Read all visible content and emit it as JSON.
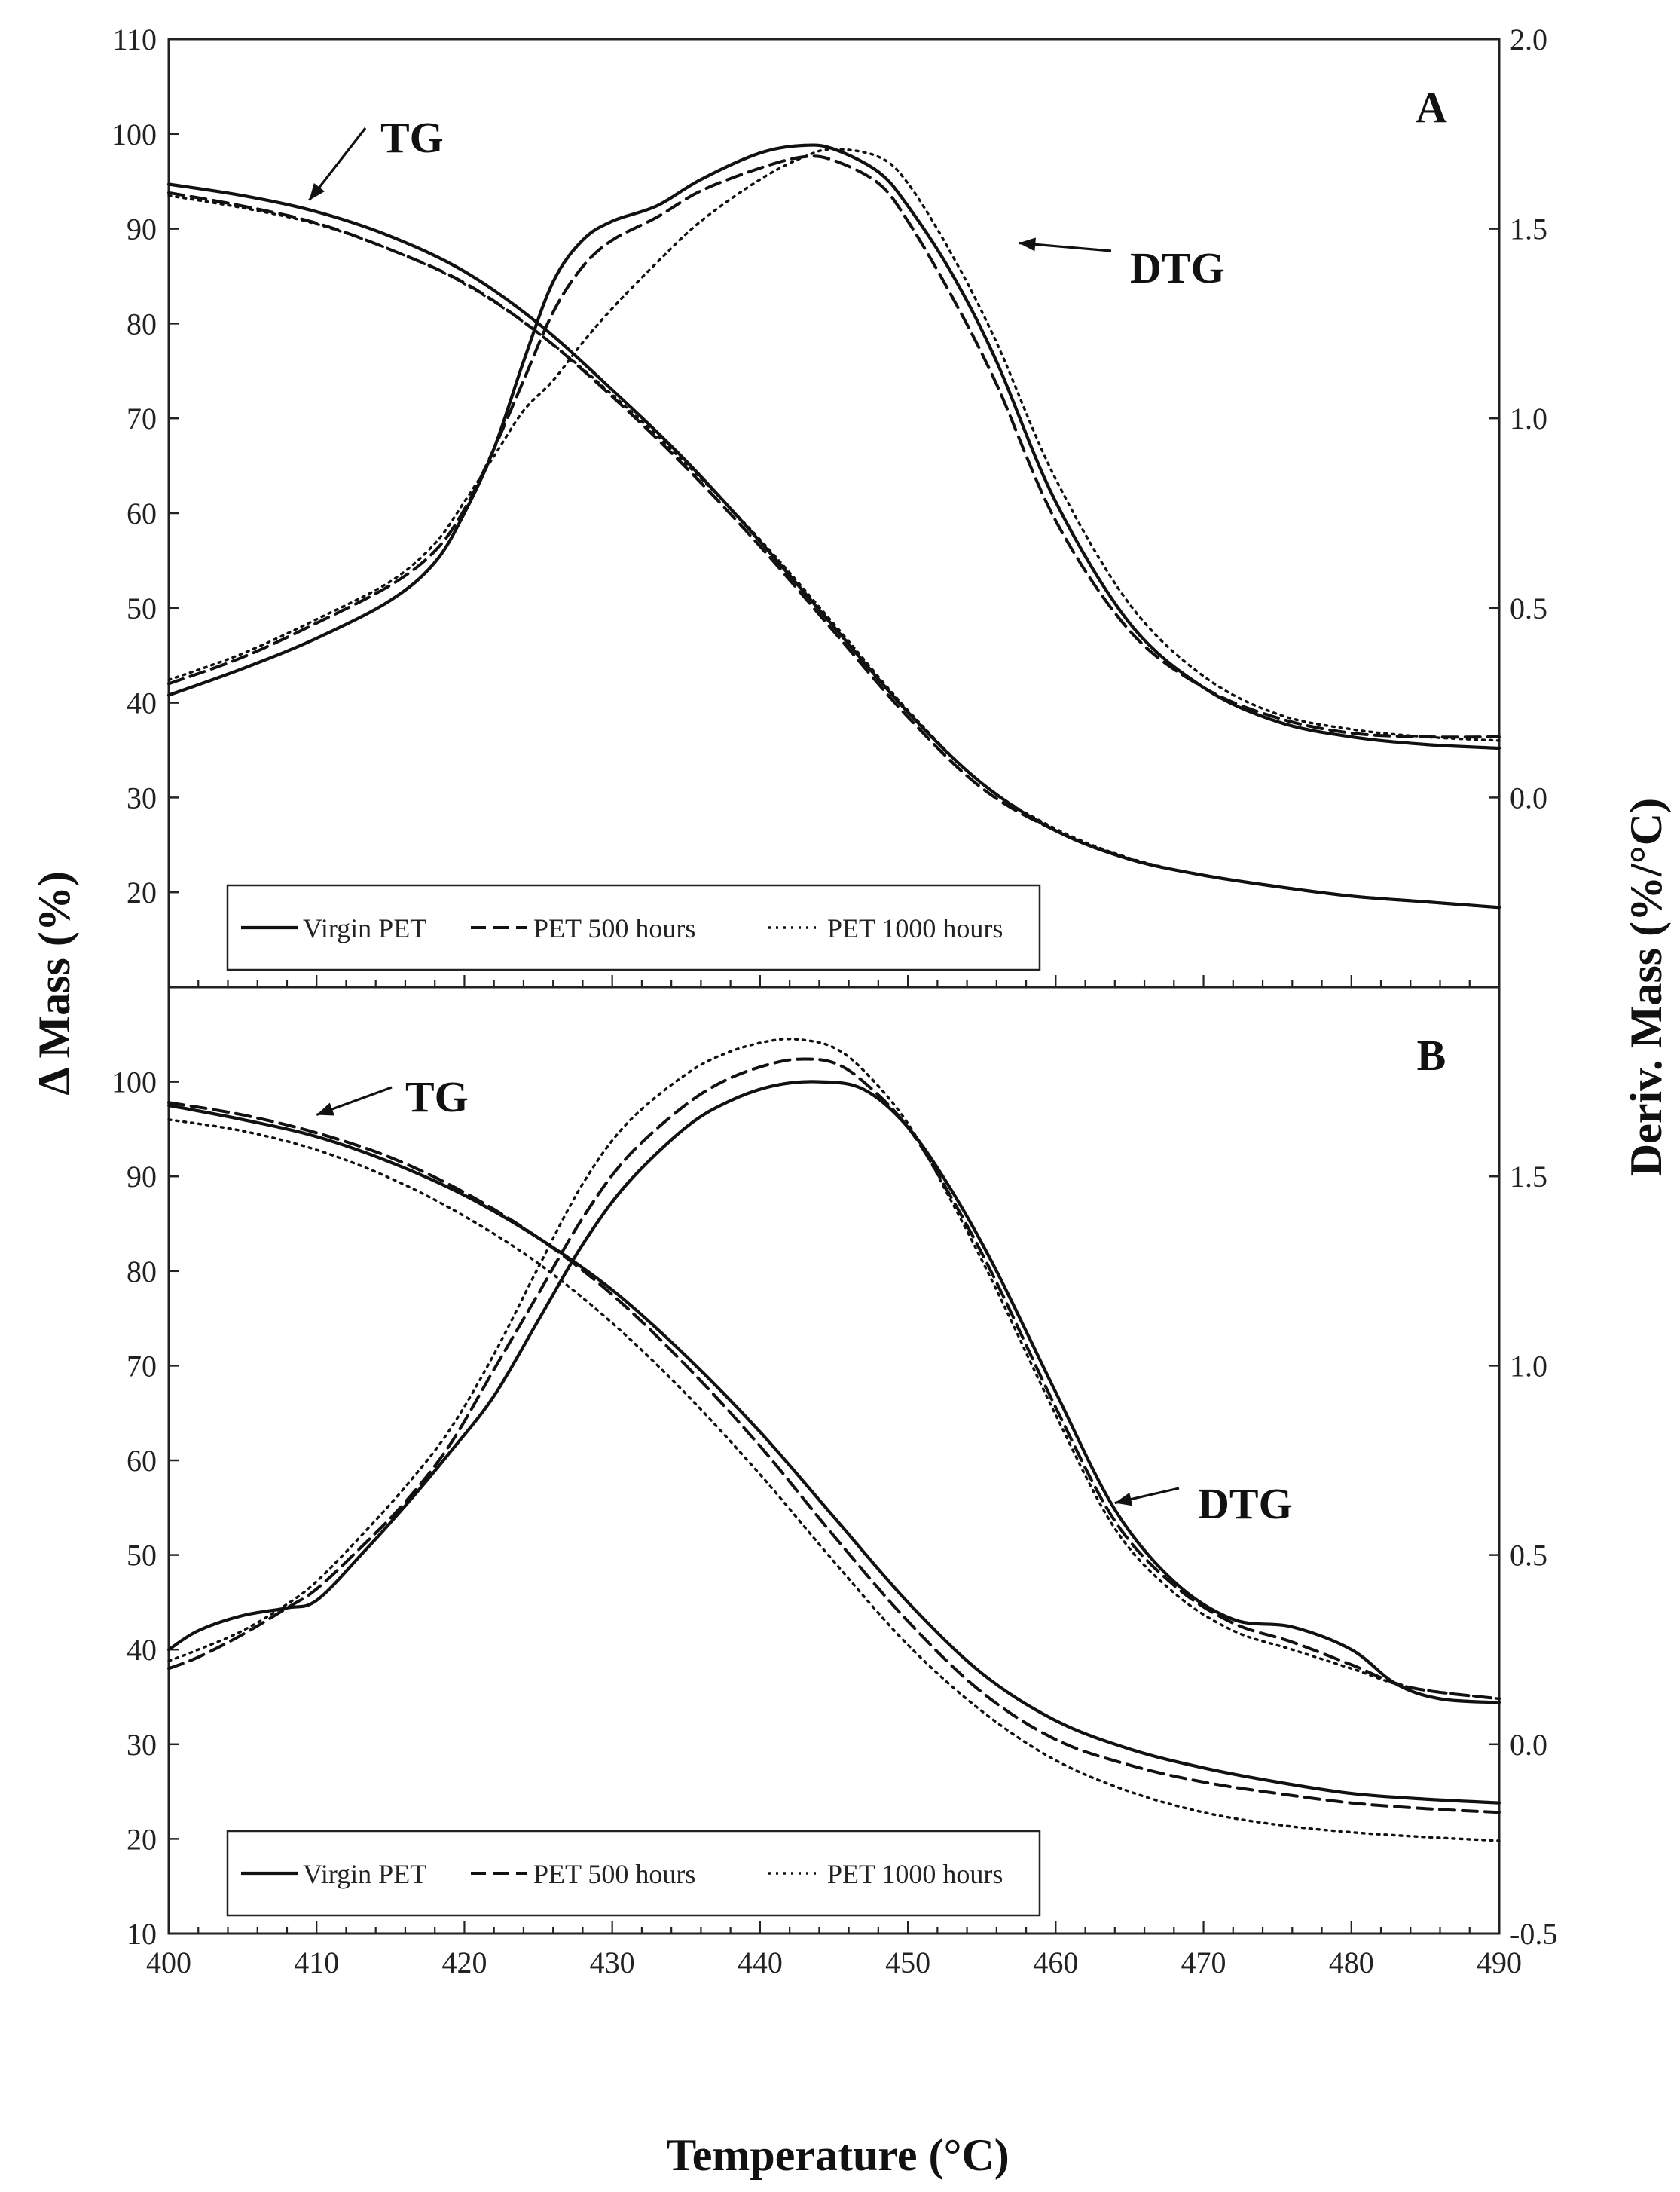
{
  "chart_data": {
    "type": "line",
    "xlabel": "Temperature (°C)",
    "ylabel_left": "Δ Mass (%)",
    "ylabel_right": "Deriv. Mass (%/°C)",
    "xlim": [
      400,
      490
    ],
    "xticks": [
      400,
      410,
      420,
      430,
      440,
      450,
      460,
      470,
      480,
      490
    ],
    "legend": {
      "placement": "bottom-left",
      "entries": [
        {
          "name": "Virgin PET",
          "style": "solid"
        },
        {
          "name": "PET 500 hours",
          "style": "dashed"
        },
        {
          "name": "PET 1000 hours",
          "style": "dotted"
        }
      ]
    },
    "panels": [
      {
        "label": "A",
        "ylim_left": [
          10,
          110
        ],
        "ylim_right": [
          -0.5,
          2.0
        ],
        "yticks_left": [
          20,
          30,
          40,
          50,
          60,
          70,
          80,
          90,
          100,
          110
        ],
        "yticks_right": [
          0.0,
          0.5,
          1.0,
          1.5,
          2.0
        ],
        "annotations": [
          {
            "text": "TG",
            "arrow_to": [
              409.5,
              93
            ]
          },
          {
            "text": "DTG",
            "arrow_to": [
              457.5,
              88.5
            ]
          }
        ],
        "series": [
          {
            "name": "Virgin PET",
            "kind": "TG",
            "axis": "left",
            "style": "solid",
            "x": [
              400,
              405,
              410,
              415,
              420,
              425,
              430,
              435,
              440,
              445,
              450,
              455,
              460,
              465,
              470,
              475,
              480,
              485,
              490
            ],
            "y": [
              94.7,
              93.5,
              91.8,
              89.2,
              85.5,
              80,
              73,
              65.5,
              57,
              48,
              39,
              31.5,
              26.5,
              23.5,
              21.8,
              20.6,
              19.6,
              19,
              18.4
            ]
          },
          {
            "name": "PET 500 hours",
            "kind": "TG",
            "axis": "left",
            "style": "dashed",
            "x": [
              400,
              405,
              410,
              415,
              420,
              425,
              430,
              435,
              440,
              445,
              450,
              455,
              460,
              465,
              470,
              475,
              480,
              485,
              490
            ],
            "y": [
              93.8,
              92.4,
              90.6,
              87.8,
              84.3,
              79,
              72.3,
              64.8,
              56.5,
              47.5,
              38.5,
              31,
              26.5,
              23.5,
              21.8,
              20.6,
              19.6,
              19,
              18.4
            ]
          },
          {
            "name": "PET 1000 hours",
            "kind": "TG",
            "axis": "left",
            "style": "dotted",
            "x": [
              400,
              405,
              410,
              415,
              420,
              425,
              430,
              435,
              440,
              445,
              450,
              455,
              460,
              465,
              470,
              475,
              480,
              485,
              490
            ],
            "y": [
              93.5,
              92.2,
              90.5,
              87.8,
              84.2,
              79,
              72.5,
              65.2,
              57.2,
              48.3,
              39.2,
              31.5,
              26.7,
              23.6,
              21.8,
              20.6,
              19.6,
              19,
              18.4
            ]
          },
          {
            "name": "Virgin PET",
            "kind": "DTG",
            "axis": "right",
            "style": "solid",
            "x": [
              400,
              405,
              410,
              415,
              418,
              420,
              422,
              424,
              426,
              428,
              430,
              433,
              436,
              440,
              443,
              445,
              448,
              450,
              453,
              456,
              460,
              465,
              470,
              475,
              480,
              485,
              490
            ],
            "y": [
              0.27,
              0.34,
              0.42,
              0.52,
              0.62,
              0.75,
              0.92,
              1.15,
              1.36,
              1.47,
              1.52,
              1.56,
              1.63,
              1.7,
              1.72,
              1.71,
              1.65,
              1.56,
              1.38,
              1.15,
              0.78,
              0.46,
              0.29,
              0.2,
              0.16,
              0.14,
              0.13
            ]
          },
          {
            "name": "PET 500 hours",
            "kind": "DTG",
            "axis": "right",
            "style": "dashed",
            "x": [
              400,
              405,
              410,
              415,
              418,
              420,
              422,
              424,
              426,
              428,
              430,
              433,
              436,
              440,
              443,
              445,
              448,
              450,
              453,
              456,
              460,
              465,
              470,
              475,
              480,
              485,
              490
            ],
            "y": [
              0.3,
              0.37,
              0.46,
              0.56,
              0.65,
              0.76,
              0.92,
              1.1,
              1.28,
              1.4,
              1.47,
              1.53,
              1.6,
              1.66,
              1.69,
              1.68,
              1.62,
              1.52,
              1.32,
              1.09,
              0.73,
              0.44,
              0.29,
              0.21,
              0.17,
              0.16,
              0.16
            ]
          },
          {
            "name": "PET 1000 hours",
            "kind": "DTG",
            "axis": "right",
            "style": "dotted",
            "x": [
              400,
              405,
              410,
              415,
              418,
              420,
              422,
              424,
              426,
              428,
              430,
              433,
              436,
              440,
              443,
              445,
              448,
              450,
              453,
              456,
              460,
              465,
              470,
              475,
              480,
              485,
              490
            ],
            "y": [
              0.31,
              0.38,
              0.47,
              0.57,
              0.67,
              0.78,
              0.9,
              1.02,
              1.1,
              1.2,
              1.29,
              1.41,
              1.52,
              1.63,
              1.69,
              1.71,
              1.69,
              1.62,
              1.43,
              1.2,
              0.84,
              0.51,
              0.32,
              0.22,
              0.18,
              0.16,
              0.15
            ]
          }
        ]
      },
      {
        "label": "B",
        "ylim_left": [
          10,
          110
        ],
        "ylim_right": [
          -0.5,
          2.0
        ],
        "yticks_left": [
          10,
          20,
          30,
          40,
          50,
          60,
          70,
          80,
          90,
          100
        ],
        "yticks_right": [
          -0.5,
          0.0,
          0.5,
          1.0,
          1.5
        ],
        "annotations": [
          {
            "text": "TG",
            "arrow_to": [
              410,
              96.5
            ]
          },
          {
            "text": "DTG",
            "arrow_to": [
              464,
              55.5
            ]
          }
        ],
        "series": [
          {
            "name": "Virgin PET",
            "kind": "TG",
            "axis": "left",
            "style": "solid",
            "x": [
              400,
              405,
              410,
              415,
              420,
              425,
              430,
              435,
              440,
              445,
              450,
              455,
              460,
              465,
              470,
              475,
              480,
              485,
              490
            ],
            "y": [
              97.5,
              96,
              94.2,
              91.5,
              88,
              83.5,
              78,
              71,
              63,
              54,
              45,
              37.5,
              32.5,
              29.5,
              27.5,
              26,
              24.8,
              24.2,
              23.8
            ]
          },
          {
            "name": "PET 500 hours",
            "kind": "TG",
            "axis": "left",
            "style": "dashed",
            "x": [
              400,
              405,
              410,
              415,
              420,
              425,
              430,
              435,
              440,
              445,
              450,
              455,
              460,
              465,
              470,
              475,
              480,
              485,
              490
            ],
            "y": [
              97.8,
              96.5,
              94.6,
              92,
              88.3,
              83.5,
              77.5,
              70,
              61.5,
              52,
              43,
              35.5,
              30.5,
              27.8,
              26,
              24.8,
              23.8,
              23.2,
              22.8
            ]
          },
          {
            "name": "PET 1000 hours",
            "kind": "TG",
            "axis": "left",
            "style": "dotted",
            "x": [
              400,
              405,
              410,
              415,
              420,
              425,
              430,
              435,
              440,
              445,
              450,
              455,
              460,
              465,
              470,
              475,
              480,
              485,
              490
            ],
            "y": [
              96,
              94.8,
              92.8,
              89.8,
              85.8,
              80.8,
              74.5,
              67,
              58.5,
              49.3,
              40.5,
              33.5,
              28.3,
              25,
              22.8,
              21.5,
              20.7,
              20.2,
              19.8
            ]
          },
          {
            "name": "Virgin PET",
            "kind": "DTG",
            "axis": "right",
            "style": "solid",
            "x": [
              400,
              402,
              405,
              408,
              410,
              413,
              416,
              419,
              422,
              425,
              428,
              431,
              435,
              438,
              441,
              444,
              447,
              450,
              453,
              456,
              460,
              464,
              468,
              472,
              476,
              480,
              483,
              486,
              490
            ],
            "y": [
              0.25,
              0.3,
              0.34,
              0.36,
              0.38,
              0.5,
              0.63,
              0.77,
              0.92,
              1.12,
              1.32,
              1.48,
              1.63,
              1.7,
              1.74,
              1.75,
              1.73,
              1.63,
              1.46,
              1.25,
              0.93,
              0.62,
              0.43,
              0.33,
              0.31,
              0.25,
              0.16,
              0.12,
              0.11
            ]
          },
          {
            "name": "PET 500 hours",
            "kind": "DTG",
            "axis": "right",
            "style": "dashed",
            "x": [
              400,
              402,
              405,
              408,
              410,
              413,
              416,
              419,
              422,
              425,
              428,
              431,
              435,
              438,
              441,
              443,
              445,
              447,
              450,
              453,
              456,
              460,
              464,
              468,
              472,
              476,
              480,
              484,
              490
            ],
            "y": [
              0.2,
              0.23,
              0.29,
              0.36,
              0.41,
              0.52,
              0.64,
              0.79,
              0.99,
              1.19,
              1.39,
              1.55,
              1.69,
              1.76,
              1.8,
              1.81,
              1.8,
              1.75,
              1.63,
              1.44,
              1.22,
              0.89,
              0.59,
              0.42,
              0.32,
              0.27,
              0.21,
              0.15,
              0.12
            ]
          },
          {
            "name": "PET 1000 hours",
            "kind": "DTG",
            "axis": "right",
            "style": "dotted",
            "x": [
              400,
              402,
              405,
              408,
              410,
              413,
              416,
              419,
              422,
              425,
              428,
              431,
              435,
              438,
              441,
              443,
              445,
              447,
              450,
              453,
              456,
              460,
              464,
              468,
              472,
              476,
              480,
              484,
              490
            ],
            "y": [
              0.22,
              0.25,
              0.3,
              0.37,
              0.43,
              0.55,
              0.68,
              0.83,
              1.03,
              1.26,
              1.48,
              1.64,
              1.77,
              1.83,
              1.86,
              1.86,
              1.84,
              1.78,
              1.64,
              1.43,
              1.2,
              0.87,
              0.57,
              0.4,
              0.3,
              0.25,
              0.2,
              0.15,
              0.12
            ]
          }
        ]
      }
    ]
  }
}
